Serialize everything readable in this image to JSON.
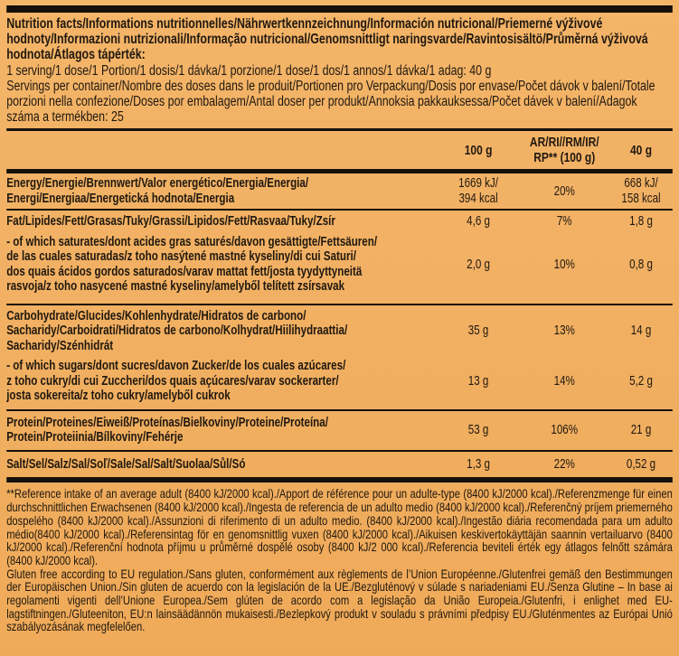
{
  "colors": {
    "background_top": "#f4b569",
    "background_bottom": "#efaa59",
    "text": "#20180f",
    "rule": "#15100a"
  },
  "header": {
    "title": "Nutrition facts/Informations nutritionnelles/Nährwertkennzeichnung/Información nutricional/Priemerné výživové hodnoty/Informazioni nutrizionali/Informação nutricional/Genomsnittligt naringsvarde/Ravintosisältö/Průměrná výživová hodnota/Átlagos tápérték:",
    "serving_size": "1 serving/1 dose/1 Portion/1 dosis/1 dávka/1 porzione/1 dose/1 dos/1 annos/1 dávka/1 adag: 40 g",
    "servings_per_container": "Servings per container/Nombre des doses dans le produit/Portionen pro Verpackung/Dosis por envase/Počet dávok v balení/Totale porzioni nella confezione/Doses por embalagem/Antal doser per produkt/Annoksia pakkauksessa/Počet dávek v balení/Adagok száma a termékben: 25"
  },
  "table": {
    "columns": [
      "100 g",
      "AR/RI//RM/IR/\nRP** (100 g)",
      "40 g"
    ],
    "rows": [
      {
        "label": "Energy/Energie/Brennwert/Valor energético/Energia/Energia/\nEnergi/Energiaa/Energetická hodnota/Energia",
        "per100": "1669 kJ/\n394 kcal",
        "ri": "20%",
        "per40": "668 kJ/\n158 kcal"
      },
      {
        "label": "Fat/Lipides/Fett/Grasas/Tuky/Grassi/Lipidos/Fett/Rasvaa/Tuky/Zsír",
        "per100": "4,6 g",
        "ri": "7%",
        "per40": "1,8 g"
      },
      {
        "label": "- of which saturates/dont acides gras saturés/davon gesättigte/Fettsäuren/\nde las cuales saturadas/z toho nasýtené mastné kyseliny/di cui Saturi/\ndos quais ácidos gordos saturados/varav mattat fett/josta tyydyttyneitä\nrasvoja/z toho nasycené mastné kyseliny/amelyből telített zsírsavak",
        "per100": "2,0 g",
        "ri": "10%",
        "per40": "0,8 g"
      },
      {
        "label": "Carbohydrate/Glucides/Kohlenhydrate/Hidratos de carbono/\nSacharidy/Carboidrati/Hidratos de carbono/Kolhydrat/Hiilihydraattia/\nSacharidy/Szénhidrát",
        "per100": "35 g",
        "ri": "13%",
        "per40": "14 g"
      },
      {
        "label": "- of which sugars/dont sucres/davon Zucker/de los cuales azúcares/\nz toho cukry/di cui Zuccheri/dos quais açúcares/varav sockerarter/\njosta sokereita/z toho cukry/amelyből cukrok",
        "per100": "13 g",
        "ri": "14%",
        "per40": "5,2 g"
      },
      {
        "label": "Protein/Proteines/Eiweiß/Proteínas/Bielkoviny/Proteine/Proteína/\nProtein/Proteiinia/Bílkoviny/Fehérje",
        "per100": "53 g",
        "ri": "106%",
        "per40": "21 g"
      },
      {
        "label": "Salt/Sel/Salz/Sal/Soľ/Sale/Sal/Salt/Suolaa/Sůl/Só",
        "per100": "1,3 g",
        "ri": "22%",
        "per40": "0,52 g"
      }
    ]
  },
  "footnotes": {
    "reference_intake": "**Reference intake of an average adult (8400 kJ/2000 kcal)./Apport de référence pour un adulte-type (8400 kJ/2000 kcal)./Referenzmenge für einen durchschnittlichen Erwachsenen (8400 kJ/2000 kcal)./Ingesta de referencia de un adulto medio (8400 kJ/2000 kcal)./Referenčný príjem priemerného dospelého (8400 kJ/2000 kcal)./Assunzioni di riferimento di un adulto medio. (8400 kJ/2000 kcal)./Ingestão diária recomendada para um adulto médio(8400 kJ/2000 kcal)./Referensintag för en genomsnittlig vuxen (8400 kJ/2000 kcal)./Aikuisen keskivertokäyttäjän saannin vertailuarvo (8400 kJ/2000 kcal)./Referenční hodnota příjmu u průměrné dospělé osoby (8400 kJ/2 000 kcal)./Referencia beviteli érték egy átlagos felnőtt számára (8400 kJ/2000 kcal).",
    "gluten_free": "Gluten free according to EU regulation./Sans gluten, conformément aux règlements de l’Union Européenne./Glutenfrei gemäß den Bestimmungen der Europäischen Union./Sin gluten de acuerdo con la legislación de la UE./Bezgluténový v súlade s nariadeniami EU./Senza Glutine – In base ai regolamenti vigenti dell’Unione Europea./Sem glúten de acordo com a legislação da União Europeia./Glutenfri, i enlighet med EU-lagstiftningen./Gluteeniton, EU:n lainsäädännön mukaisesti./Bezlepkový produkt v souladu s právními předpisy EU./Gluténmentes az Európai Unió szabályozásának megfelelően."
  }
}
